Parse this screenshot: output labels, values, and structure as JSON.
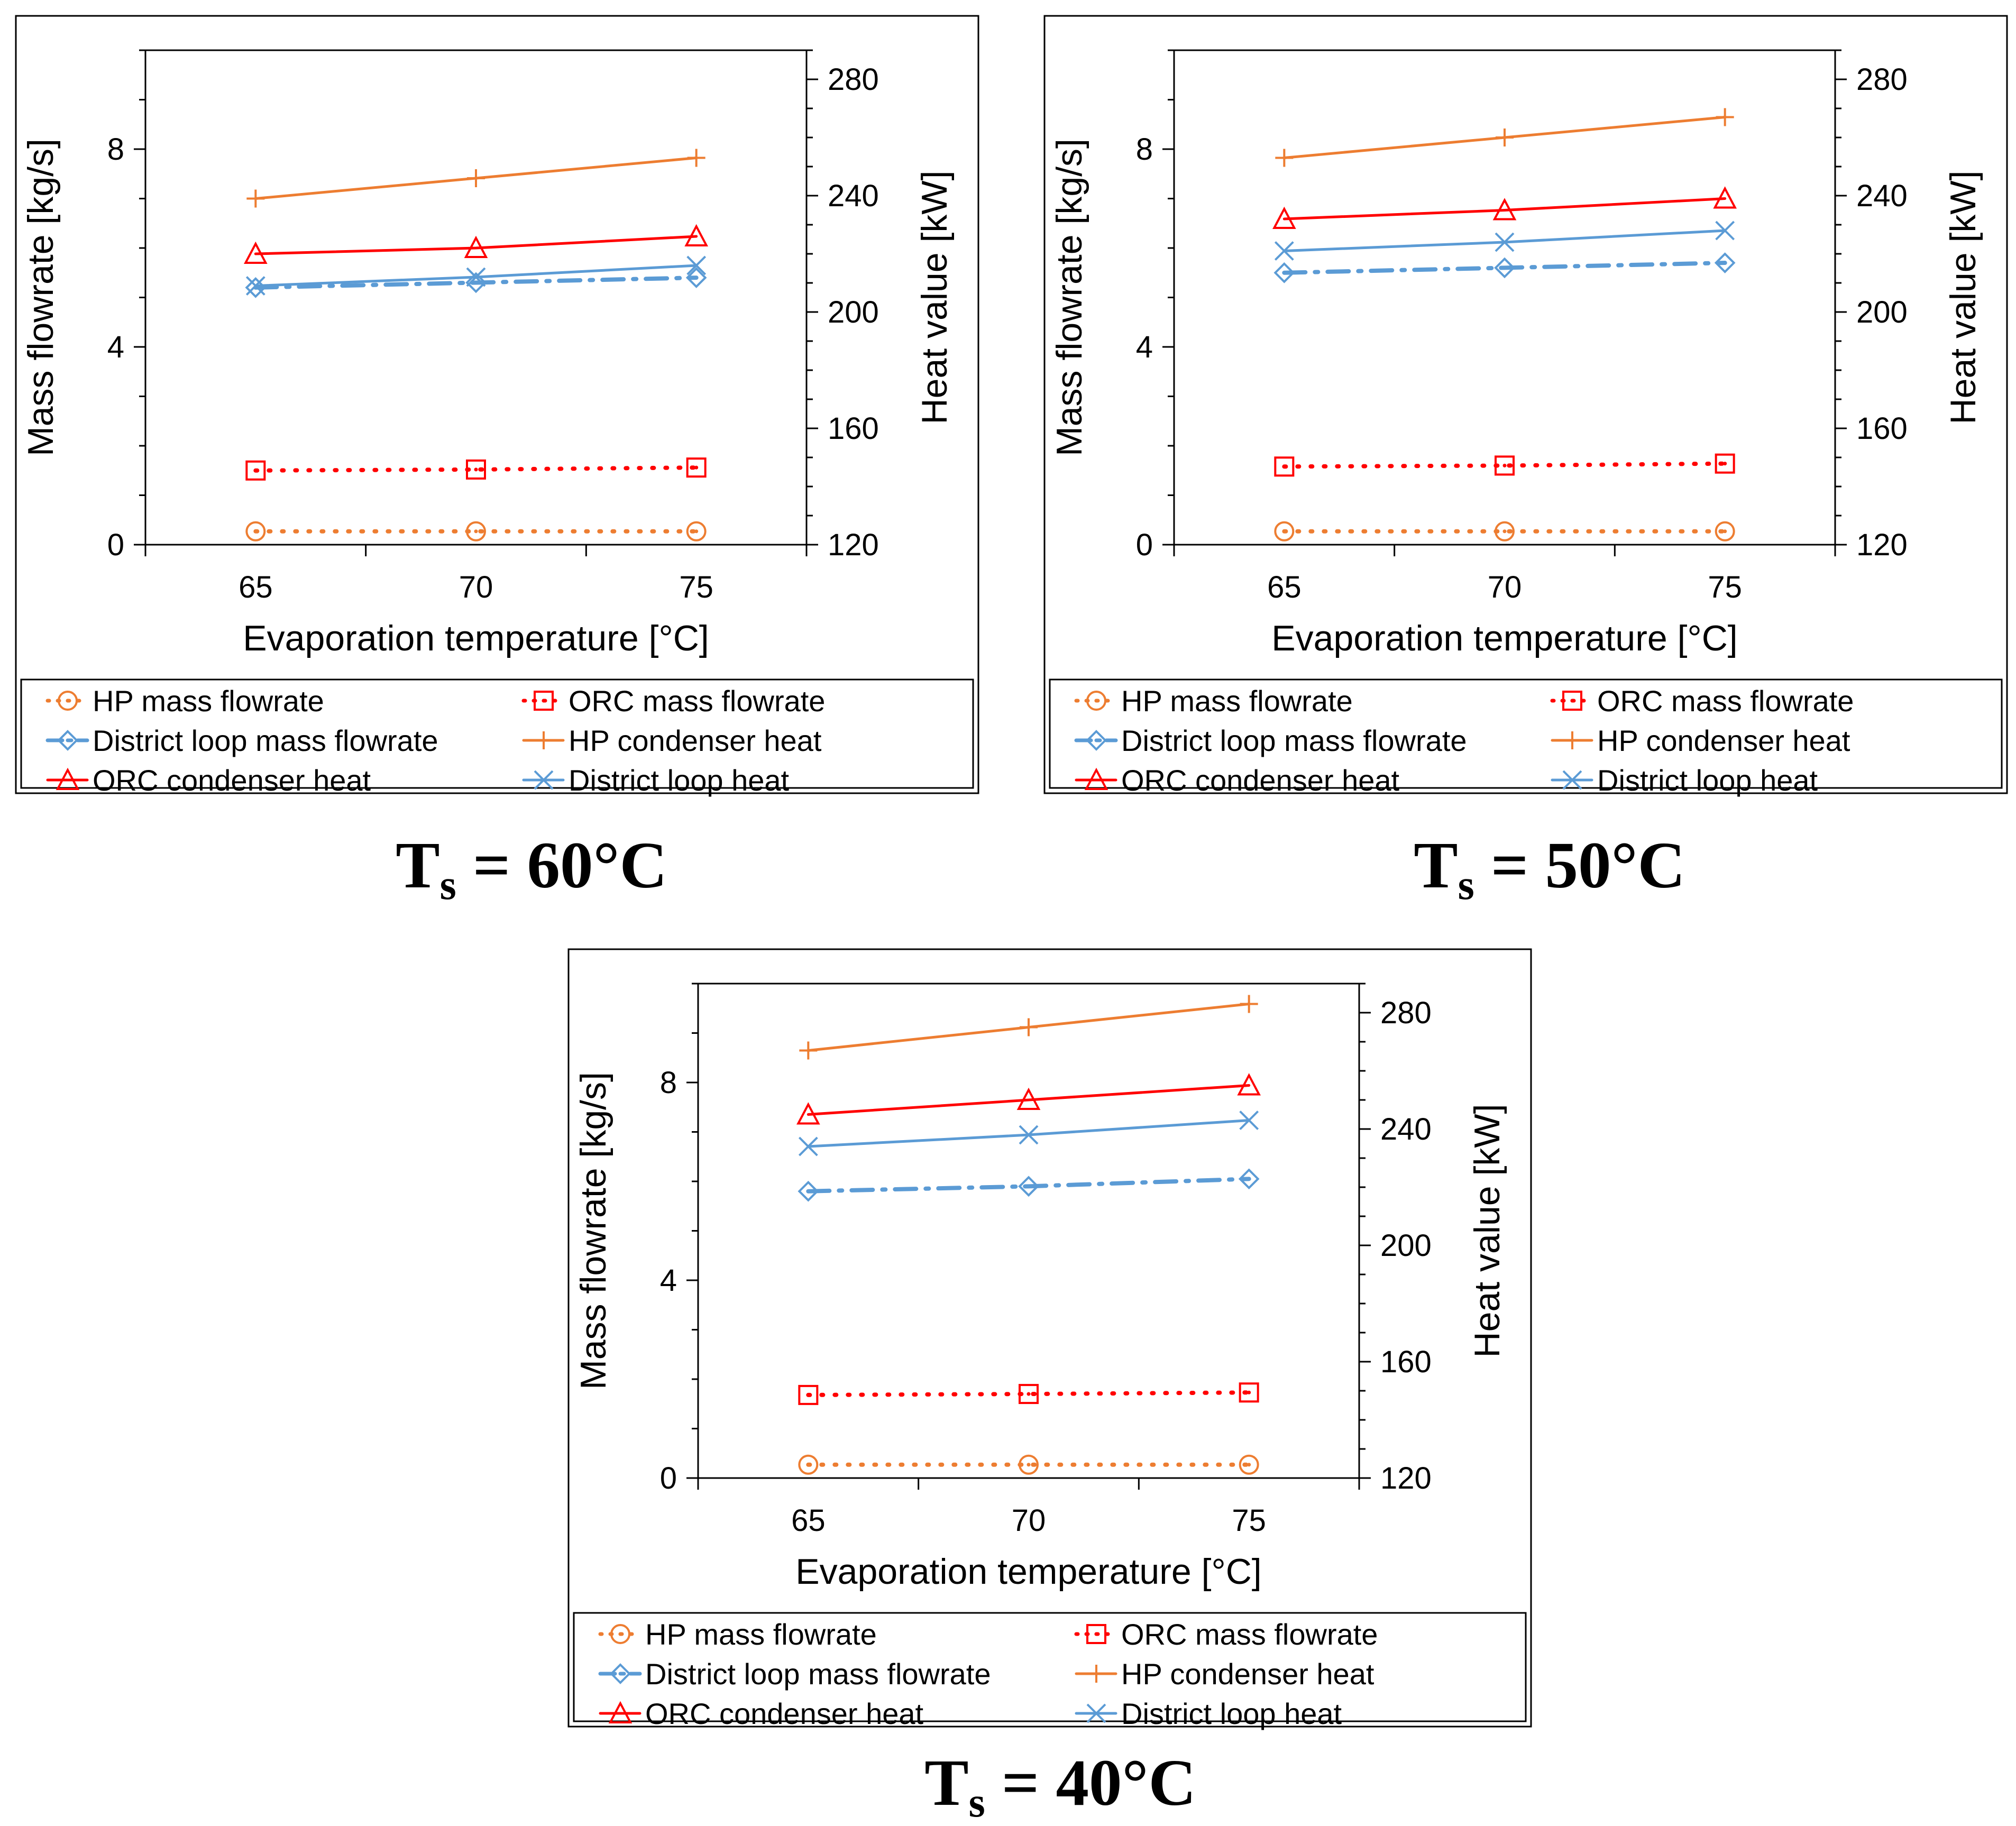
{
  "chart_data": [
    {
      "type": "line",
      "caption": {
        "symbol": "T",
        "subscript": "s",
        "rest": " = 60°C"
      },
      "x": [
        65,
        70,
        75
      ],
      "x_ticks": [
        "65",
        "70",
        "75"
      ],
      "xlabel": "Evaporation temperature [°C]",
      "ylabel_left": "Mass flowrate [kg/s]",
      "ylabel_right": "Heat value [kW]",
      "ylim_left": [
        0,
        10
      ],
      "yticks_left": [
        "0",
        "4",
        "8"
      ],
      "ylim_right": [
        120,
        290
      ],
      "yticks_right": [
        "120",
        "160",
        "200",
        "240",
        "280"
      ],
      "series": [
        {
          "name": "HP mass flowrate",
          "axis": "left",
          "values": [
            0.27,
            0.27,
            0.27
          ]
        },
        {
          "name": "ORC mass flowrate",
          "axis": "left",
          "values": [
            1.5,
            1.52,
            1.56
          ]
        },
        {
          "name": "District loop mass flowrate",
          "axis": "left",
          "values": [
            5.2,
            5.3,
            5.4
          ]
        },
        {
          "name": "HP condenser heat",
          "axis": "right",
          "values": [
            239,
            246,
            253
          ]
        },
        {
          "name": "ORC condenser heat",
          "axis": "right",
          "values": [
            220,
            222,
            226
          ]
        },
        {
          "name": "District loop heat",
          "axis": "right",
          "values": [
            209,
            212,
            216
          ]
        }
      ]
    },
    {
      "type": "line",
      "caption": {
        "symbol": "T",
        "subscript": "s",
        "rest": " = 50°C"
      },
      "x": [
        65,
        70,
        75
      ],
      "x_ticks": [
        "65",
        "70",
        "75"
      ],
      "xlabel": "Evaporation temperature [°C]",
      "ylabel_left": "Mass flowrate [kg/s]",
      "ylabel_right": "Heat value [kW]",
      "ylim_left": [
        0,
        10
      ],
      "yticks_left": [
        "0",
        "4",
        "8"
      ],
      "ylim_right": [
        120,
        290
      ],
      "yticks_right": [
        "120",
        "160",
        "200",
        "240",
        "280"
      ],
      "series": [
        {
          "name": "HP mass flowrate",
          "axis": "left",
          "values": [
            0.27,
            0.27,
            0.27
          ]
        },
        {
          "name": "ORC mass flowrate",
          "axis": "left",
          "values": [
            1.58,
            1.6,
            1.64
          ]
        },
        {
          "name": "District loop mass flowrate",
          "axis": "left",
          "values": [
            5.5,
            5.6,
            5.7
          ]
        },
        {
          "name": "HP condenser heat",
          "axis": "right",
          "values": [
            253,
            260,
            267
          ]
        },
        {
          "name": "ORC condenser heat",
          "axis": "right",
          "values": [
            232,
            235,
            239
          ]
        },
        {
          "name": "District loop heat",
          "axis": "right",
          "values": [
            221,
            224,
            228
          ]
        }
      ]
    },
    {
      "type": "line",
      "caption": {
        "symbol": "T",
        "subscript": "s",
        "rest": " = 40°C"
      },
      "x": [
        65,
        70,
        75
      ],
      "x_ticks": [
        "65",
        "70",
        "75"
      ],
      "xlabel": "Evaporation temperature [°C]",
      "ylabel_left": "Mass flowrate [kg/s]",
      "ylabel_right": "Heat value [kW]",
      "ylim_left": [
        0,
        10
      ],
      "yticks_left": [
        "0",
        "4",
        "8"
      ],
      "ylim_right": [
        120,
        290
      ],
      "yticks_right": [
        "120",
        "160",
        "200",
        "240",
        "280"
      ],
      "series": [
        {
          "name": "HP mass flowrate",
          "axis": "left",
          "values": [
            0.27,
            0.27,
            0.27
          ]
        },
        {
          "name": "ORC mass flowrate",
          "axis": "left",
          "values": [
            1.68,
            1.7,
            1.73
          ]
        },
        {
          "name": "District loop mass flowrate",
          "axis": "left",
          "values": [
            5.8,
            5.9,
            6.05
          ]
        },
        {
          "name": "HP condenser heat",
          "axis": "right",
          "values": [
            267,
            275,
            283
          ]
        },
        {
          "name": "ORC condenser heat",
          "axis": "right",
          "values": [
            245,
            250,
            255
          ]
        },
        {
          "name": "District loop heat",
          "axis": "right",
          "values": [
            234,
            238,
            243
          ]
        }
      ]
    }
  ],
  "styles": {
    "HP mass flowrate": {
      "color": "#ED7D31",
      "dash": "dotted",
      "marker": "circle"
    },
    "ORC mass flowrate": {
      "color": "#FF0000",
      "dash": "dotted",
      "marker": "square"
    },
    "District loop mass flowrate": {
      "color": "#5B9BD5",
      "dash": "dashdot",
      "marker": "diamond"
    },
    "HP condenser heat": {
      "color": "#ED7D31",
      "dash": "solid",
      "marker": "plus"
    },
    "ORC condenser heat": {
      "color": "#FF0000",
      "dash": "solid",
      "marker": "triangle"
    },
    "District loop heat": {
      "color": "#5B9BD5",
      "dash": "solid",
      "marker": "cross"
    }
  }
}
